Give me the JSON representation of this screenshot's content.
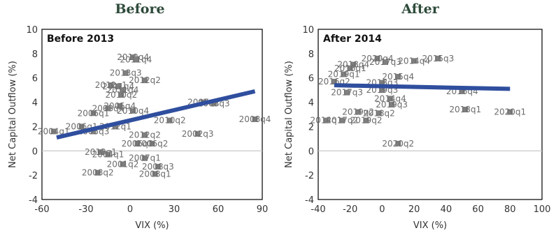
{
  "chart_data": [
    {
      "type": "scatter",
      "title": "Before",
      "inner_title": "Before 2013",
      "xlabel": "VIX (%)",
      "ylabel": "Net Capital Outflow (%)",
      "xlim": [
        -60,
        90
      ],
      "ylim": [
        -4,
        10
      ],
      "xticks": [
        "-60",
        "-30",
        "0",
        "30",
        "60",
        "90"
      ],
      "xtick_values": [
        -60,
        -30,
        0,
        30,
        60,
        90
      ],
      "yticks": [
        "-4",
        "-2",
        "0",
        "2",
        "4",
        "6",
        "8",
        "10"
      ],
      "ytick_values": [
        -4,
        -2,
        0,
        2,
        4,
        6,
        8,
        10
      ],
      "marker_color": "#7f7f7f",
      "trend_color": "#2f4e9e",
      "trendline": {
        "x": [
          -50,
          85
        ],
        "y": [
          1.1,
          4.9
        ]
      },
      "points": [
        {
          "label": "2012q4",
          "x": 2,
          "y": 7.7
        },
        {
          "label": "2011q4",
          "x": 4,
          "y": 7.5
        },
        {
          "label": "2013q3",
          "x": -3,
          "y": 6.4
        },
        {
          "label": "2012q2",
          "x": 10,
          "y": 5.8
        },
        {
          "label": "2012q1",
          "x": -13,
          "y": 5.4
        },
        {
          "label": "2011q4",
          "x": -8,
          "y": 5.3
        },
        {
          "label": "2011q4",
          "x": -5,
          "y": 5.0
        },
        {
          "label": "2010q2",
          "x": -6,
          "y": 4.6
        },
        {
          "label": "2007q2",
          "x": 50,
          "y": 4.0
        },
        {
          "label": "2008q3",
          "x": 57,
          "y": 3.9
        },
        {
          "label": "2005q4",
          "x": -7,
          "y": 3.7
        },
        {
          "label": "2003q4",
          "x": -15,
          "y": 3.5
        },
        {
          "label": "2010q4",
          "x": 2,
          "y": 3.3
        },
        {
          "label": "2006q1",
          "x": -25,
          "y": 3.1
        },
        {
          "label": "2008q4",
          "x": 85,
          "y": 2.6
        },
        {
          "label": "2010q2",
          "x": 27,
          "y": 2.5
        },
        {
          "label": "2006q1",
          "x": -33,
          "y": 2.0
        },
        {
          "label": "2012q1",
          "x": -10,
          "y": 2.0
        },
        {
          "label": "2004q1",
          "x": -52,
          "y": 1.6
        },
        {
          "label": "2005q3",
          "x": -25,
          "y": 1.6
        },
        {
          "label": "2012q2",
          "x": 10,
          "y": 1.3
        },
        {
          "label": "2002q3",
          "x": 46,
          "y": 1.4
        },
        {
          "label": "2006q2",
          "x": 5,
          "y": 0.6
        },
        {
          "label": "2006q2",
          "x": 15,
          "y": 0.6
        },
        {
          "label": "2013q1",
          "x": -20,
          "y": -0.1
        },
        {
          "label": "2004q1",
          "x": -15,
          "y": -0.3
        },
        {
          "label": "2007q1",
          "x": 10,
          "y": -0.6
        },
        {
          "label": "2001q2",
          "x": -5,
          "y": -1.1
        },
        {
          "label": "2008q3",
          "x": 19,
          "y": -1.3
        },
        {
          "label": "2008q2",
          "x": -22,
          "y": -1.8
        },
        {
          "label": "2008q1",
          "x": 17,
          "y": -1.9
        }
      ]
    },
    {
      "type": "scatter",
      "title": "After",
      "inner_title": "After 2014",
      "xlabel": "VIX (%)",
      "ylabel": "Net Capital Outflow (%)",
      "xlim": [
        -40,
        100
      ],
      "ylim": [
        -4,
        10
      ],
      "xticks": [
        "-40",
        "-20",
        "0",
        "20",
        "40",
        "60",
        "80",
        "100"
      ],
      "xtick_values": [
        -40,
        -20,
        0,
        20,
        40,
        60,
        80,
        100
      ],
      "yticks": [
        "-4",
        "-2",
        "0",
        "2",
        "4",
        "6",
        "8",
        "10"
      ],
      "ytick_values": [
        -4,
        -2,
        0,
        2,
        4,
        6,
        8,
        10
      ],
      "marker_color": "#7f7f7f",
      "trend_color": "#2f4e9e",
      "trendline": {
        "x": [
          -30,
          80
        ],
        "y": [
          5.4,
          5.1
        ]
      },
      "points": [
        {
          "label": "2020q4",
          "x": -3,
          "y": 7.6
        },
        {
          "label": "2015q3",
          "x": 35,
          "y": 7.6
        },
        {
          "label": "2014q4",
          "x": 20,
          "y": 7.4
        },
        {
          "label": "2017q3",
          "x": 2,
          "y": 7.3
        },
        {
          "label": "2018q4",
          "x": -18,
          "y": 7.1
        },
        {
          "label": "2016q1",
          "x": -20,
          "y": 6.8
        },
        {
          "label": "2019q1",
          "x": -24,
          "y": 6.3
        },
        {
          "label": "2015q4",
          "x": 10,
          "y": 6.1
        },
        {
          "label": "2016q2",
          "x": -30,
          "y": 5.7
        },
        {
          "label": "2018q3",
          "x": 0,
          "y": 5.6
        },
        {
          "label": "2016q4",
          "x": 50,
          "y": 4.9
        },
        {
          "label": "2017q3",
          "x": -22,
          "y": 4.8
        },
        {
          "label": "2019q3",
          "x": 0,
          "y": 5.0
        },
        {
          "label": "2014q4",
          "x": 5,
          "y": 4.3
        },
        {
          "label": "2019q3",
          "x": 6,
          "y": 3.8
        },
        {
          "label": "2018q1",
          "x": 52,
          "y": 3.4
        },
        {
          "label": "2020q1",
          "x": 80,
          "y": 3.2
        },
        {
          "label": "2019q2",
          "x": -15,
          "y": 3.2
        },
        {
          "label": "2018q2",
          "x": -2,
          "y": 3.1
        },
        {
          "label": "2017q2",
          "x": -25,
          "y": 2.5
        },
        {
          "label": "2019q2",
          "x": -10,
          "y": 2.5
        },
        {
          "label": "2014q1",
          "x": -35,
          "y": 2.5
        },
        {
          "label": "2020q2",
          "x": 10,
          "y": 0.6
        }
      ]
    }
  ]
}
